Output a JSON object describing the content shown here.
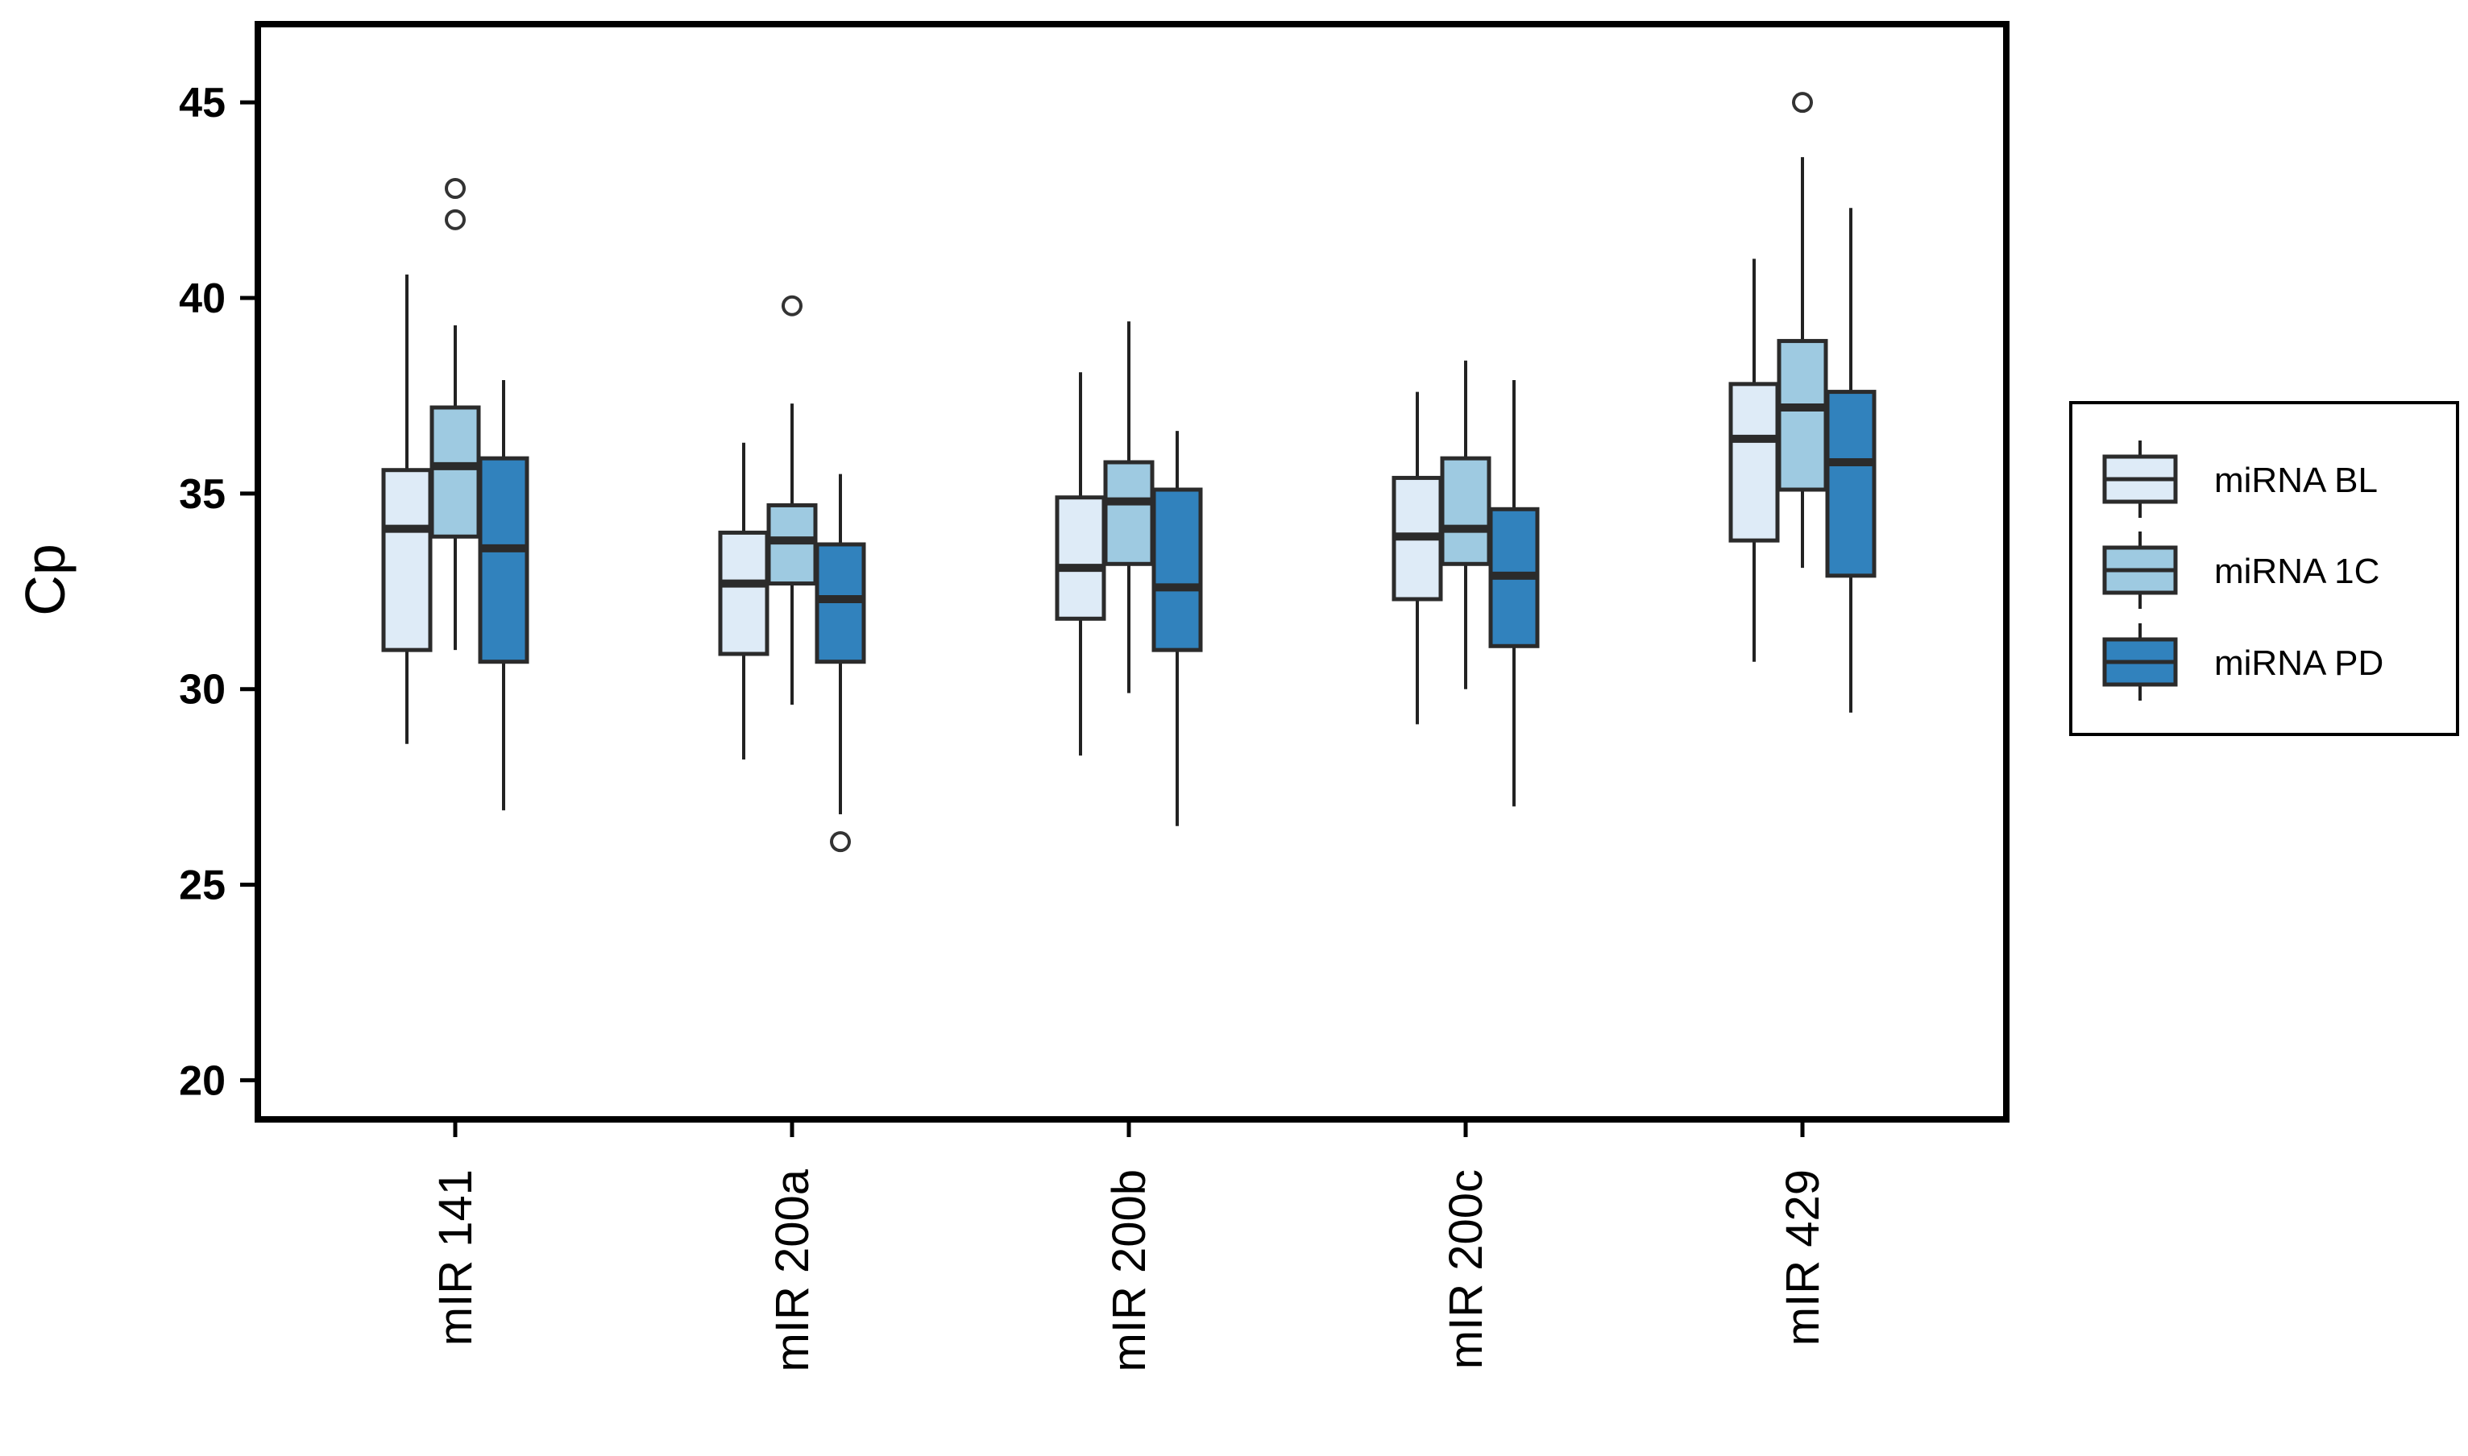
{
  "chart_data": {
    "type": "boxplot",
    "title": "",
    "xlabel": "",
    "ylabel": "Cp",
    "ylim": [
      19,
      47
    ],
    "yticks": [
      20,
      25,
      30,
      35,
      40,
      45
    ],
    "grid": false,
    "legend_position": "right",
    "categories": [
      "mIR 141",
      "mIR 200a",
      "mIR 200b",
      "mIR 200c",
      "mIR 429"
    ],
    "series": [
      {
        "name": "miRNA BL",
        "color": "#deebf7",
        "boxes": [
          {
            "whisker_low": 28.6,
            "q1": 31.0,
            "median": 34.1,
            "q3": 35.6,
            "whisker_high": 40.6,
            "outliers": []
          },
          {
            "whisker_low": 28.2,
            "q1": 30.9,
            "median": 32.7,
            "q3": 34.0,
            "whisker_high": 36.3,
            "outliers": []
          },
          {
            "whisker_low": 28.3,
            "q1": 31.8,
            "median": 33.1,
            "q3": 34.9,
            "whisker_high": 38.1,
            "outliers": []
          },
          {
            "whisker_low": 29.1,
            "q1": 32.3,
            "median": 33.9,
            "q3": 35.4,
            "whisker_high": 37.6,
            "outliers": []
          },
          {
            "whisker_low": 30.7,
            "q1": 33.8,
            "median": 36.4,
            "q3": 37.8,
            "whisker_high": 41.0,
            "outliers": []
          }
        ]
      },
      {
        "name": "miRNA 1C",
        "color": "#9ecae1",
        "boxes": [
          {
            "whisker_low": 31.0,
            "q1": 33.9,
            "median": 35.7,
            "q3": 37.2,
            "whisker_high": 39.3,
            "outliers": [
              42.0,
              42.8
            ]
          },
          {
            "whisker_low": 29.6,
            "q1": 32.7,
            "median": 33.8,
            "q3": 34.7,
            "whisker_high": 37.3,
            "outliers": [
              39.8
            ]
          },
          {
            "whisker_low": 29.9,
            "q1": 33.2,
            "median": 34.8,
            "q3": 35.8,
            "whisker_high": 39.4,
            "outliers": []
          },
          {
            "whisker_low": 30.0,
            "q1": 33.2,
            "median": 34.1,
            "q3": 35.9,
            "whisker_high": 38.4,
            "outliers": []
          },
          {
            "whisker_low": 33.1,
            "q1": 35.1,
            "median": 37.2,
            "q3": 38.9,
            "whisker_high": 43.6,
            "outliers": [
              45.0
            ]
          }
        ]
      },
      {
        "name": "miRNA PD",
        "color": "#3182bd",
        "boxes": [
          {
            "whisker_low": 26.9,
            "q1": 30.7,
            "median": 33.6,
            "q3": 35.9,
            "whisker_high": 37.9,
            "outliers": []
          },
          {
            "whisker_low": 26.8,
            "q1": 30.7,
            "median": 32.3,
            "q3": 33.7,
            "whisker_high": 35.5,
            "outliers": [
              26.1
            ]
          },
          {
            "whisker_low": 26.5,
            "q1": 31.0,
            "median": 32.6,
            "q3": 35.1,
            "whisker_high": 36.6,
            "outliers": []
          },
          {
            "whisker_low": 27.0,
            "q1": 31.1,
            "median": 32.9,
            "q3": 34.6,
            "whisker_high": 37.9,
            "outliers": []
          },
          {
            "whisker_low": 29.4,
            "q1": 32.9,
            "median": 35.8,
            "q3": 37.6,
            "whisker_high": 42.3,
            "outliers": []
          }
        ]
      }
    ]
  }
}
